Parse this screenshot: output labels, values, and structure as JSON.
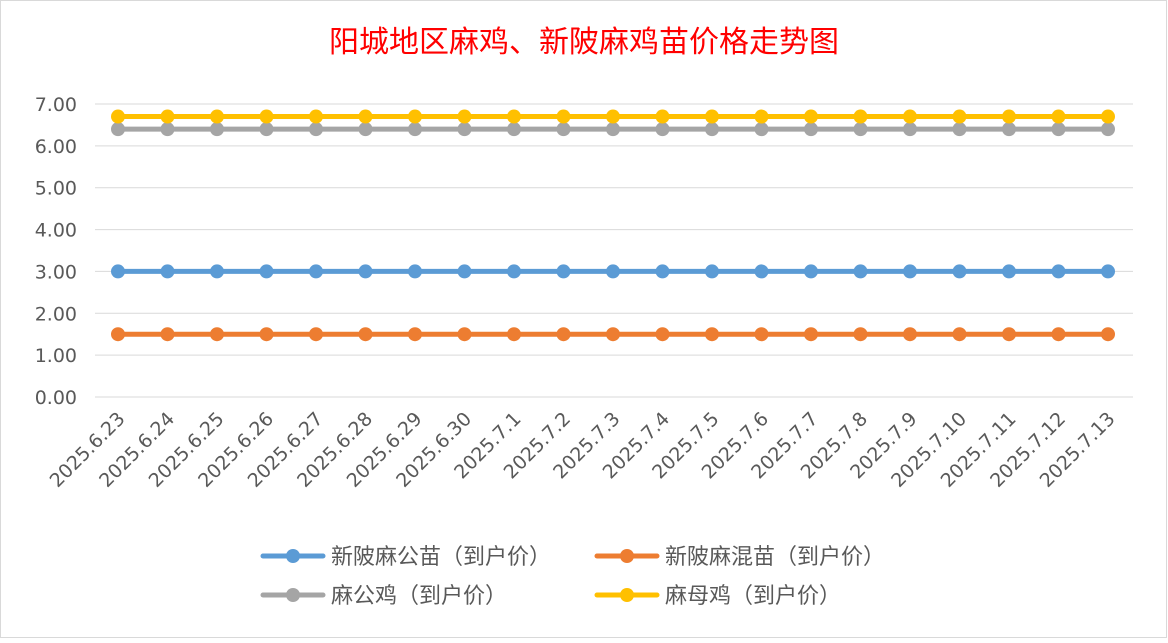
{
  "chart_data": {
    "type": "line",
    "title": "阳城地区麻鸡、新陂麻鸡苗价格走势图",
    "title_color": "#ff0000",
    "xlabel": "",
    "ylabel": "",
    "ylim": [
      0,
      7
    ],
    "y_ticks": [
      "0.00",
      "1.00",
      "2.00",
      "3.00",
      "4.00",
      "5.00",
      "6.00",
      "7.00"
    ],
    "grid": true,
    "legend_position": "bottom",
    "categories": [
      "2025.6.23",
      "2025.6.24",
      "2025.6.25",
      "2025.6.26",
      "2025.6.27",
      "2025.6.28",
      "2025.6.29",
      "2025.6.30",
      "2025.7.1",
      "2025.7.2",
      "2025.7.3",
      "2025.7.4",
      "2025.7.5",
      "2025.7.6",
      "2025.7.7",
      "2025.7.8",
      "2025.7.9",
      "2025.7.10",
      "2025.7.11",
      "2025.7.12",
      "2025.7.13"
    ],
    "series": [
      {
        "name": "新陂麻公苗（到户价）",
        "color": "#5b9bd5",
        "values": [
          3,
          3,
          3,
          3,
          3,
          3,
          3,
          3,
          3,
          3,
          3,
          3,
          3,
          3,
          3,
          3,
          3,
          3,
          3,
          3,
          3
        ]
      },
      {
        "name": "新陂麻混苗（到户价）",
        "color": "#ed7d31",
        "values": [
          1.5,
          1.5,
          1.5,
          1.5,
          1.5,
          1.5,
          1.5,
          1.5,
          1.5,
          1.5,
          1.5,
          1.5,
          1.5,
          1.5,
          1.5,
          1.5,
          1.5,
          1.5,
          1.5,
          1.5,
          1.5
        ]
      },
      {
        "name": "麻公鸡（到户价）",
        "color": "#a5a5a5",
        "values": [
          6.4,
          6.4,
          6.4,
          6.4,
          6.4,
          6.4,
          6.4,
          6.4,
          6.4,
          6.4,
          6.4,
          6.4,
          6.4,
          6.4,
          6.4,
          6.4,
          6.4,
          6.4,
          6.4,
          6.4,
          6.4
        ]
      },
      {
        "name": "麻母鸡（到户价）",
        "color": "#ffc000",
        "values": [
          6.7,
          6.7,
          6.7,
          6.7,
          6.7,
          6.7,
          6.7,
          6.7,
          6.7,
          6.7,
          6.7,
          6.7,
          6.7,
          6.7,
          6.7,
          6.7,
          6.7,
          6.7,
          6.7,
          6.7,
          6.7
        ]
      }
    ]
  }
}
